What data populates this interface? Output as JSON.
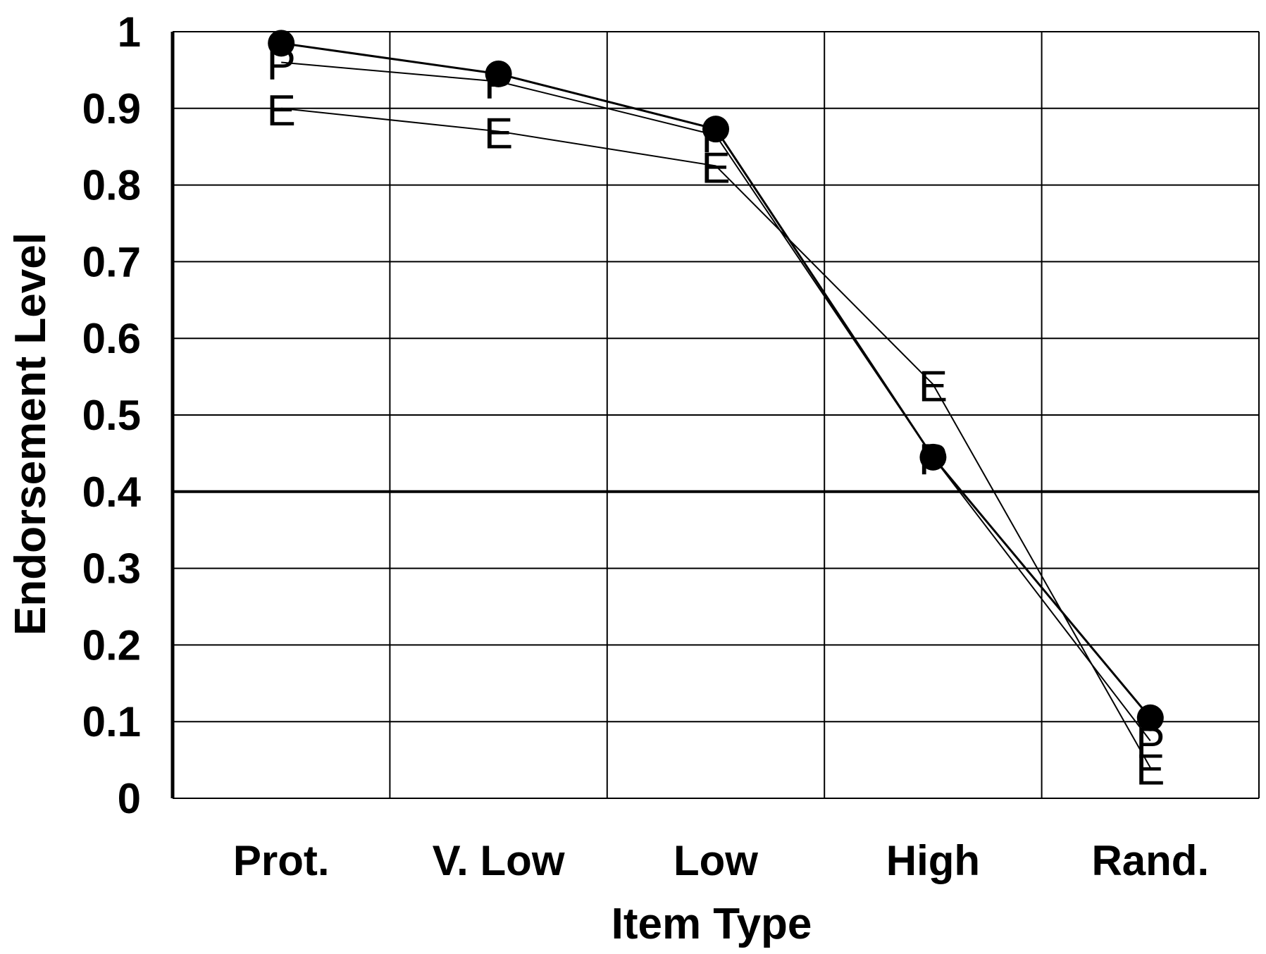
{
  "chart_data": {
    "type": "line",
    "title": "",
    "xlabel": "Item Type",
    "ylabel": "Endorsement Level",
    "categories": [
      "Prot.",
      "V. Low",
      "Low",
      "High",
      "Rand."
    ],
    "ylim": [
      0,
      1
    ],
    "yticks": [
      "0",
      "0.1",
      "0.2",
      "0.3",
      "0.4",
      "0.5",
      "0.6",
      "0.7",
      "0.8",
      "0.9",
      "1"
    ],
    "grid": true,
    "legend": "none",
    "series": [
      {
        "marker": "circle",
        "values": [
          0.985,
          0.945,
          0.873,
          0.445,
          0.105
        ]
      },
      {
        "marker": "P",
        "values": [
          0.96,
          0.935,
          0.865,
          0.445,
          0.075
        ]
      },
      {
        "marker": "E",
        "values": [
          0.9,
          0.87,
          0.825,
          0.54,
          0.04
        ]
      }
    ]
  }
}
